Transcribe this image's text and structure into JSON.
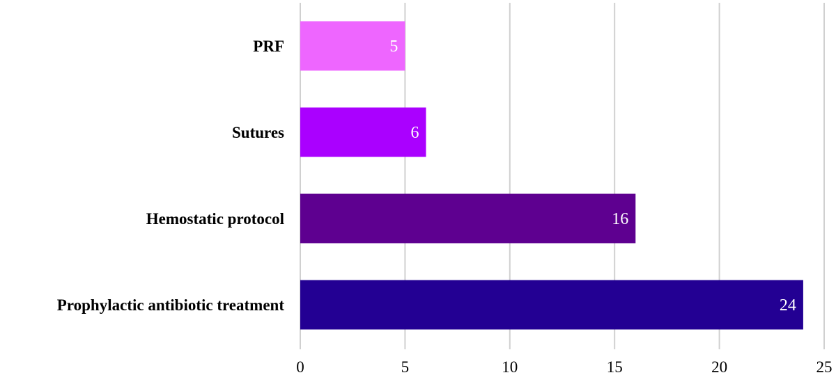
{
  "chart_data": {
    "type": "bar",
    "orientation": "horizontal",
    "title": "",
    "xlabel": "",
    "ylabel": "",
    "categories": [
      "PRF",
      "Sutures",
      "Hemostatic protocol",
      "Prophylactic antibiotic treatment"
    ],
    "values": [
      5,
      6,
      16,
      24
    ],
    "data_labels": [
      "5",
      "6",
      "16",
      "24"
    ],
    "colors": [
      "#ee66ff",
      "#aa00ff",
      "#5e0090",
      "#230093"
    ],
    "xlim": [
      0,
      25
    ],
    "x_ticks": [
      0,
      5,
      10,
      15,
      20,
      25
    ],
    "x_tick_labels": [
      "0",
      "5",
      "10",
      "15",
      "20",
      "25"
    ],
    "grid": "vertical",
    "legend": "none"
  }
}
